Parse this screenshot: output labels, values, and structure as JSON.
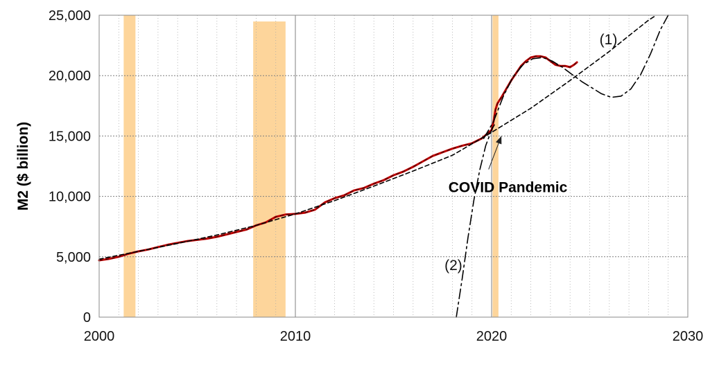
{
  "chart_data": {
    "type": "line",
    "title": "",
    "xlabel": "",
    "ylabel": "M2 ($ billion)",
    "xlim": [
      2000,
      2030
    ],
    "ylim": [
      0,
      25000
    ],
    "x_ticks": [
      2000,
      2010,
      2020,
      2030
    ],
    "x_tick_labels": [
      "2000",
      "2010",
      "2020",
      "2030"
    ],
    "y_ticks": [
      0,
      5000,
      10000,
      15000,
      20000,
      25000
    ],
    "y_tick_labels": [
      "0",
      "5,000",
      "10,000",
      "15,000",
      "20,000",
      "25,000"
    ],
    "grid": {
      "x_major": true,
      "x_minor": true,
      "y_major": true
    },
    "legend": "none",
    "colors": {
      "m2": "#c00000",
      "fit": "#000000",
      "recession": "#fdd59b",
      "grid": "#7f7f7f"
    },
    "recession_bands": [
      {
        "start": 2001.25,
        "end": 2001.85
      },
      {
        "start": 2007.85,
        "end": 2009.5
      },
      {
        "start": 2020.05,
        "end": 2020.35
      }
    ],
    "series": [
      {
        "style": "solid",
        "x": [
          2000.0,
          2000.5,
          2001.0,
          2001.5,
          2002.0,
          2002.5,
          2003.0,
          2003.5,
          2004.0,
          2004.5,
          2005.0,
          2005.5,
          2006.0,
          2006.5,
          2007.0,
          2007.5,
          2008.0,
          2008.5,
          2009.0,
          2009.5,
          2010.0,
          2010.5,
          2011.0,
          2011.5,
          2012.0,
          2012.5,
          2013.0,
          2013.5,
          2014.0,
          2014.5,
          2015.0,
          2015.5,
          2016.0,
          2016.5,
          2017.0,
          2017.5,
          2018.0,
          2018.5,
          2019.0,
          2019.5,
          2020.0,
          2020.1,
          2020.2,
          2020.3,
          2020.5,
          2020.75,
          2021.0,
          2021.25,
          2021.5,
          2021.75,
          2022.0,
          2022.25,
          2022.5,
          2022.75,
          2023.0,
          2023.25,
          2023.5,
          2023.75,
          2024.0,
          2024.2,
          2024.35
        ],
        "y": [
          4700,
          4820,
          5000,
          5250,
          5450,
          5600,
          5800,
          6000,
          6150,
          6300,
          6400,
          6500,
          6650,
          6850,
          7050,
          7250,
          7600,
          7850,
          8300,
          8500,
          8550,
          8650,
          8900,
          9500,
          9850,
          10100,
          10500,
          10700,
          11050,
          11350,
          11750,
          12050,
          12450,
          12900,
          13350,
          13650,
          13950,
          14200,
          14400,
          14800,
          15500,
          16200,
          17200,
          17700,
          18200,
          18900,
          19600,
          20200,
          20800,
          21200,
          21500,
          21600,
          21600,
          21500,
          21200,
          20900,
          20800,
          20800,
          20700,
          20900,
          21100
        ]
      },
      {
        "style": "dashed",
        "x": [
          2000,
          2002,
          2004,
          2006,
          2008,
          2010,
          2012,
          2014,
          2016,
          2018,
          2020,
          2022,
          2024,
          2026,
          2028,
          2028.4
        ],
        "y": [
          4800,
          5450,
          6100,
          6800,
          7600,
          8550,
          9650,
          10850,
          12100,
          13400,
          15300,
          17300,
          19600,
          22000,
          24600,
          25000
        ]
      },
      {
        "style": "dashed",
        "x": [
          2019.6,
          2020.1,
          2020.6,
          2021.1,
          2021.6,
          2022.1,
          2022.6,
          2023.1,
          2023.6,
          2024.1,
          2024.6,
          2025.1,
          2025.6,
          2026.1,
          2026.6,
          2027.1,
          2027.6,
          2028.1,
          2028.6,
          2029.0
        ],
        "y": [
          14800,
          16200,
          18300,
          19900,
          20900,
          21400,
          21500,
          21200,
          20700,
          20100,
          19500,
          19000,
          18500,
          18200,
          18300,
          18900,
          20100,
          21800,
          23800,
          25000
        ]
      },
      {
        "style": "dashed",
        "x": [
          2018.2,
          2018.5,
          2018.8,
          2019.1,
          2019.4,
          2019.7,
          2020.0,
          2020.2
        ],
        "y": [
          0,
          3200,
          6600,
          9700,
          12200,
          14200,
          15500,
          16100
        ]
      }
    ],
    "annotations": [
      {
        "text": "(1)",
        "x": 2025.5,
        "y": 23000
      },
      {
        "text": "(2)",
        "x": 2017.6,
        "y": 4300
      },
      {
        "text": "COVID Pandemic",
        "x": 2017.8,
        "y": 10750,
        "arrow_to": [
          2020.5,
          15000
        ]
      }
    ]
  }
}
